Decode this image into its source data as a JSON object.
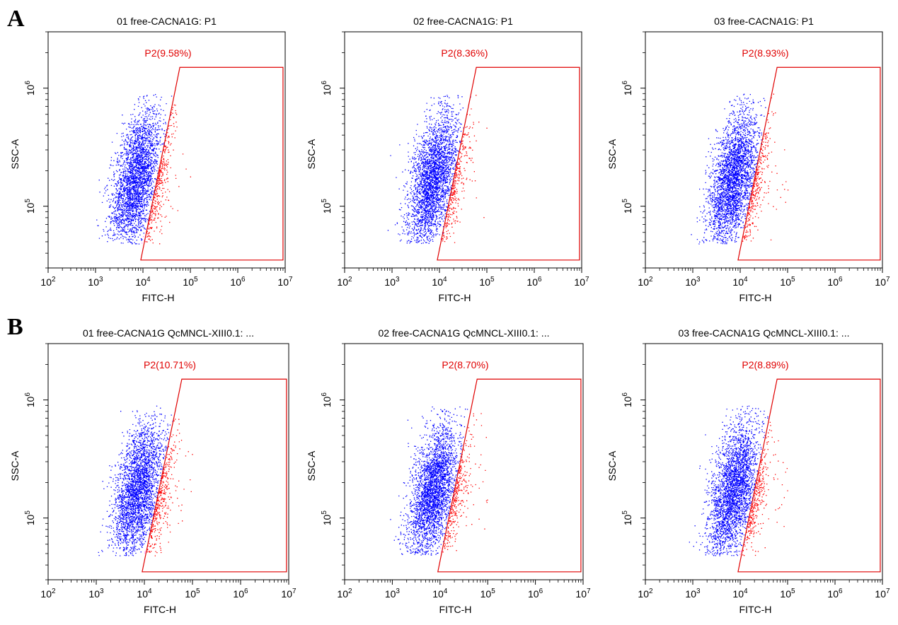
{
  "panel_labels": [
    "A",
    "B"
  ],
  "chart_data": [
    {
      "type": "scatter",
      "title": "01 free-CACNA1G: P1",
      "xlabel": "FITC-H",
      "ylabel": "SSC-A",
      "x_scale": "log",
      "y_scale": "log",
      "xlim": [
        100,
        10000000
      ],
      "ylim": [
        30000,
        3000000
      ],
      "x_ticks": [
        "10^2",
        "10^3",
        "10^4",
        "10^5",
        "10^6",
        "10^7"
      ],
      "y_ticks": [
        "10^5",
        "10^6"
      ],
      "gate": {
        "name": "P2",
        "label": "P2(9.58%)",
        "percent": 9.58,
        "vertices": [
          [
            9000,
            35000
          ],
          [
            60000,
            1500000
          ],
          [
            9000000,
            1500000
          ],
          [
            9000000,
            35000
          ]
        ]
      },
      "populations": {
        "negative_color": "#0000ff",
        "positive_color": "#ff0000",
        "boundary_color": "#ff80ff"
      }
    },
    {
      "type": "scatter",
      "title": "02 free-CACNA1G: P1",
      "xlabel": "FITC-H",
      "ylabel": "SSC-A",
      "x_scale": "log",
      "y_scale": "log",
      "xlim": [
        100,
        10000000
      ],
      "ylim": [
        30000,
        3000000
      ],
      "x_ticks": [
        "10^2",
        "10^3",
        "10^4",
        "10^5",
        "10^6",
        "10^7"
      ],
      "y_ticks": [
        "10^5",
        "10^6"
      ],
      "gate": {
        "name": "P2",
        "label": "P2(8.36%)",
        "percent": 8.36,
        "vertices": [
          [
            9000,
            35000
          ],
          [
            60000,
            1500000
          ],
          [
            9000000,
            1500000
          ],
          [
            9000000,
            35000
          ]
        ]
      },
      "populations": {
        "negative_color": "#0000ff",
        "positive_color": "#ff0000",
        "boundary_color": "#ff80ff"
      }
    },
    {
      "type": "scatter",
      "title": "03 free-CACNA1G: P1",
      "xlabel": "FITC-H",
      "ylabel": "SSC-A",
      "x_scale": "log",
      "y_scale": "log",
      "xlim": [
        100,
        10000000
      ],
      "ylim": [
        30000,
        3000000
      ],
      "x_ticks": [
        "10^2",
        "10^3",
        "10^4",
        "10^5",
        "10^6",
        "10^7"
      ],
      "y_ticks": [
        "10^5",
        "10^6"
      ],
      "gate": {
        "name": "P2",
        "label": "P2(8.93%)",
        "percent": 8.93,
        "vertices": [
          [
            9000,
            35000
          ],
          [
            60000,
            1500000
          ],
          [
            9000000,
            1500000
          ],
          [
            9000000,
            35000
          ]
        ]
      },
      "populations": {
        "negative_color": "#0000ff",
        "positive_color": "#ff0000",
        "boundary_color": "#ff80ff"
      }
    },
    {
      "type": "scatter",
      "title": "01 free-CACNA1G QcMNCL-XIII0.1: ...",
      "xlabel": "FITC-H",
      "ylabel": "SSC-A",
      "x_scale": "log",
      "y_scale": "log",
      "xlim": [
        100,
        10000000
      ],
      "ylim": [
        30000,
        3000000
      ],
      "x_ticks": [
        "10^2",
        "10^3",
        "10^4",
        "10^5",
        "10^6",
        "10^7"
      ],
      "y_ticks": [
        "10^5",
        "10^6"
      ],
      "gate": {
        "name": "P2",
        "label": "P2(10.71%)",
        "percent": 10.71,
        "vertices": [
          [
            9000,
            35000
          ],
          [
            60000,
            1500000
          ],
          [
            9000000,
            1500000
          ],
          [
            9000000,
            35000
          ]
        ]
      },
      "populations": {
        "negative_color": "#0000ff",
        "positive_color": "#ff0000",
        "boundary_color": "#ff80ff"
      }
    },
    {
      "type": "scatter",
      "title": "02 free-CACNA1G QcMNCL-XIII0.1: ...",
      "xlabel": "FITC-H",
      "ylabel": "SSC-A",
      "x_scale": "log",
      "y_scale": "log",
      "xlim": [
        100,
        10000000
      ],
      "ylim": [
        30000,
        3000000
      ],
      "x_ticks": [
        "10^2",
        "10^3",
        "10^4",
        "10^5",
        "10^6",
        "10^7"
      ],
      "y_ticks": [
        "10^5",
        "10^6"
      ],
      "gate": {
        "name": "P2",
        "label": "P2(8.70%)",
        "percent": 8.7,
        "vertices": [
          [
            9000,
            35000
          ],
          [
            60000,
            1500000
          ],
          [
            9000000,
            1500000
          ],
          [
            9000000,
            35000
          ]
        ]
      },
      "populations": {
        "negative_color": "#0000ff",
        "positive_color": "#ff0000",
        "boundary_color": "#ff80ff"
      }
    },
    {
      "type": "scatter",
      "title": "03 free-CACNA1G QcMNCL-XIII0.1: ...",
      "xlabel": "FITC-H",
      "ylabel": "SSC-A",
      "x_scale": "log",
      "y_scale": "log",
      "xlim": [
        100,
        10000000
      ],
      "ylim": [
        30000,
        3000000
      ],
      "x_ticks": [
        "10^2",
        "10^3",
        "10^4",
        "10^5",
        "10^6",
        "10^7"
      ],
      "y_ticks": [
        "10^5",
        "10^6"
      ],
      "gate": {
        "name": "P2",
        "label": "P2(8.89%)",
        "percent": 8.89,
        "vertices": [
          [
            9000,
            35000
          ],
          [
            60000,
            1500000
          ],
          [
            9000000,
            1500000
          ],
          [
            9000000,
            35000
          ]
        ]
      },
      "populations": {
        "negative_color": "#0000ff",
        "positive_color": "#ff0000",
        "boundary_color": "#ff80ff"
      }
    }
  ]
}
